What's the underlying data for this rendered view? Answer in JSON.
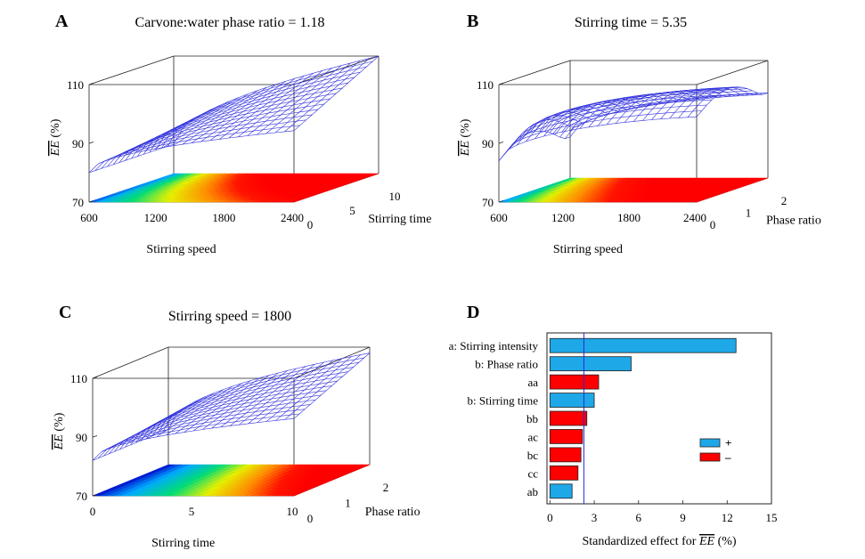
{
  "chart_data": [
    {
      "panel": "A",
      "type": "surface3d",
      "title": "Carvone:water phase ratio  = 1.18",
      "xlabel": "Stirring speed",
      "ylabel": "Stirring time",
      "zlabel_overline": "EE",
      "zlabel_unit": "(%)",
      "x_ticks": [
        "600",
        "1200",
        "1800",
        "2400"
      ],
      "y_ticks": [
        "0",
        "5",
        "10"
      ],
      "z_ticks": [
        "70",
        "90",
        "110"
      ],
      "xlim": [
        600,
        2400
      ],
      "ylim": [
        0,
        10
      ],
      "zlim": [
        70,
        110
      ]
    },
    {
      "panel": "B",
      "type": "surface3d",
      "title": "Stirring time = 5.35",
      "xlabel": "Stirring speed",
      "ylabel": "Phase ratio",
      "zlabel_overline": "EE",
      "zlabel_unit": "(%)",
      "x_ticks": [
        "600",
        "1200",
        "1800",
        "2400"
      ],
      "y_ticks": [
        "0",
        "1",
        "2"
      ],
      "z_ticks": [
        "70",
        "90",
        "110"
      ],
      "xlim": [
        600,
        2400
      ],
      "ylim": [
        0,
        2
      ],
      "zlim": [
        70,
        110
      ]
    },
    {
      "panel": "C",
      "type": "surface3d",
      "title": "Stirring speed = 1800",
      "xlabel": "Stirring time",
      "ylabel": "Phase ratio",
      "zlabel_overline": "EE",
      "zlabel_unit": "(%)",
      "x_ticks": [
        "0",
        "5",
        "10"
      ],
      "y_ticks": [
        "0",
        "1",
        "2"
      ],
      "z_ticks": [
        "70",
        "90",
        "110"
      ],
      "xlim": [
        0,
        10
      ],
      "ylim": [
        0,
        2
      ],
      "zlim": [
        70,
        110
      ]
    },
    {
      "panel": "D",
      "type": "bar",
      "orientation": "horizontal",
      "categories": [
        "a: Stirring intensity",
        "b: Phase ratio",
        "aa",
        "b: Stirring time",
        "bb",
        "ac",
        "bc",
        "cc",
        "ab"
      ],
      "values": [
        12.6,
        5.5,
        3.3,
        3.0,
        2.5,
        2.2,
        2.1,
        1.9,
        1.5
      ],
      "signs": [
        "+",
        "+",
        "-",
        "+",
        "-",
        "-",
        "-",
        "-",
        "+"
      ],
      "xlabel": "Standardized effect for",
      "xlabel_overline": "EE",
      "xlabel_unit": "(%)",
      "x_ticks": [
        0,
        3,
        6,
        9,
        12,
        15
      ],
      "xlim": [
        -0.2,
        15
      ],
      "reference_line": 2.3,
      "legend": [
        {
          "label": "+",
          "color": "#1ea8e8"
        },
        {
          "label": "–",
          "color": "#ff0000"
        }
      ],
      "legend_placement": "right-middle"
    }
  ],
  "panel_letters": [
    "A",
    "B",
    "C",
    "D"
  ],
  "colors": {
    "positive": "#1ea8e8",
    "negative": "#ff0000",
    "mesh": "#3333dd",
    "reference": "#2b2bd6"
  }
}
